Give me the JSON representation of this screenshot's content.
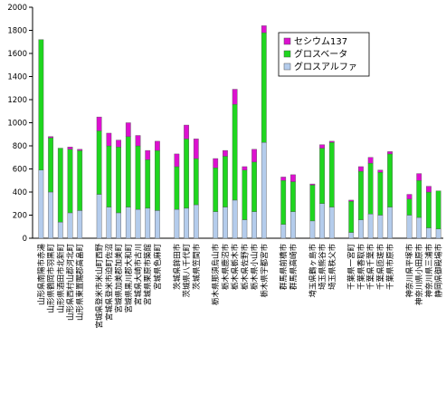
{
  "chart_data": {
    "type": "bar",
    "stacked": true,
    "categories": [
      "山形県南陽市赤湯",
      "山形県鶴岡市羽黒町",
      "山形県酒田市北新町",
      "山形県西村山郡河北町",
      "山形県東置賜郡高畠町",
      "宮城県登米市米山町西野",
      "宮城県登米市迫町佐沼",
      "宮城県加美郡加美町",
      "宮城県黒川郡大和町",
      "宮城県大崎市古川",
      "宮城県栗原市築館",
      "宮城県色麻町",
      "茨城県鉾田市",
      "茨城県八千代町",
      "茨城県笠間市",
      "栃木県那須烏山市",
      "栃木県鹿沼市",
      "栃木県栃木市",
      "栃木県佐野市",
      "栃木県小山市",
      "栃木県宇都宮市",
      "群馬県前橋市",
      "群馬県高崎市",
      "埼玉県鶴ヶ島市",
      "埼玉県熊谷市",
      "埼玉県秩父市",
      "千葉県一宮町",
      "千葉県香取市",
      "千葉県千葉市",
      "千葉県匝瑳市",
      "千葉県市原市",
      "神奈川県平塚市",
      "神奈川県小田原市",
      "神奈川県三浦市",
      "静岡県御殿場市"
    ],
    "label_rows": [
      [
        "山形県南陽市赤湯",
        "山形県鶴岡市羽黒町",
        "山形県酒田市北新町",
        "山形県西村山郡河北町",
        "山形県東置賜郡高畠町"
      ],
      [
        "宮城県登米市米山町西野",
        "宮城県登米市迫町佐沼",
        "宮城県加美郡加美町",
        "宮城県黒川郡大和町",
        "宮城県大崎市古川",
        "宮城県栗原市築館",
        "宮城県色麻町"
      ],
      [
        "茨城県鉾田市",
        "茨城県八千代町",
        "茨城県笠間市"
      ],
      [
        "栃木県那須烏山市",
        "栃木県鹿沼市",
        "栃木県栃木市",
        "栃木県佐野市",
        "栃木県小山市",
        "栃木県宇都宮市"
      ],
      [
        "群馬県前橋市",
        "群馬県高崎市"
      ],
      [
        "埼玉県鶴ヶ島市",
        "埼玉県熊谷市",
        "埼玉県秩父市"
      ],
      [
        "千葉県一宮町",
        "千葉県香取市",
        "千葉県千葉市",
        "千葉県匝瑳市",
        "千葉県市原市"
      ],
      [
        "神奈川県平塚市",
        "神奈川県小田原市",
        "神奈川県三浦市",
        "静岡県御殿場市"
      ]
    ],
    "groups": [
      5,
      7,
      3,
      6,
      2,
      3,
      5,
      4
    ],
    "series": [
      {
        "name": "グロスアルファ",
        "color": "#b4ccec",
        "values": [
          590,
          400,
          140,
          220,
          240,
          380,
          270,
          220,
          270,
          250,
          260,
          240,
          250,
          260,
          290,
          230,
          270,
          330,
          160,
          230,
          830,
          120,
          230,
          150,
          300,
          270,
          50,
          160,
          210,
          200,
          270,
          200,
          180,
          90,
          80
        ]
      },
      {
        "name": "グロスベータ",
        "color": "#1fd61f",
        "values": [
          1130,
          470,
          640,
          550,
          520,
          550,
          530,
          570,
          610,
          550,
          420,
          520,
          370,
          600,
          400,
          380,
          440,
          830,
          430,
          430,
          950,
          380,
          260,
          310,
          480,
          560,
          270,
          420,
          440,
          370,
          460,
          140,
          320,
          310,
          330
        ]
      },
      {
        "name": "セシウム137",
        "color": "#dd10d0",
        "values": [
          0,
          10,
          0,
          20,
          10,
          120,
          110,
          60,
          120,
          90,
          80,
          80,
          110,
          120,
          170,
          80,
          50,
          130,
          30,
          110,
          60,
          30,
          60,
          10,
          30,
          10,
          10,
          40,
          50,
          20,
          20,
          40,
          60,
          50,
          0
        ]
      }
    ],
    "ylim": [
      0,
      2000
    ],
    "yticks": [
      0,
      200,
      400,
      600,
      800,
      1000,
      1200,
      1400,
      1600,
      1800,
      2000
    ],
    "xlabel": "",
    "ylabel": "",
    "title": "",
    "grid": false,
    "legend_position": "top-right"
  }
}
